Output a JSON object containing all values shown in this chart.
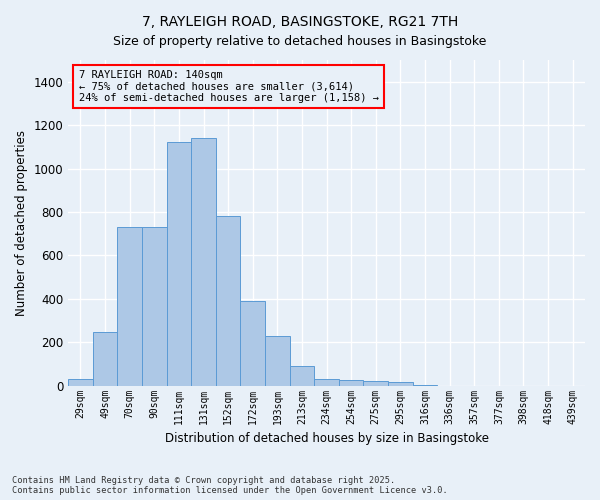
{
  "title1": "7, RAYLEIGH ROAD, BASINGSTOKE, RG21 7TH",
  "title2": "Size of property relative to detached houses in Basingstoke",
  "xlabel": "Distribution of detached houses by size in Basingstoke",
  "ylabel": "Number of detached properties",
  "categories": [
    "29sqm",
    "49sqm",
    "70sqm",
    "90sqm",
    "111sqm",
    "131sqm",
    "152sqm",
    "172sqm",
    "193sqm",
    "213sqm",
    "234sqm",
    "254sqm",
    "275sqm",
    "295sqm",
    "316sqm",
    "336sqm",
    "357sqm",
    "377sqm",
    "398sqm",
    "418sqm",
    "439sqm"
  ],
  "values": [
    30,
    248,
    730,
    730,
    1120,
    1140,
    780,
    390,
    230,
    90,
    30,
    25,
    20,
    15,
    5,
    0,
    0,
    0,
    0,
    0,
    0
  ],
  "bar_color": "#adc8e6",
  "bar_edge_color": "#5b9bd5",
  "background_color": "#e8f0f8",
  "annotation_text": "7 RAYLEIGH ROAD: 140sqm\n← 75% of detached houses are smaller (3,614)\n24% of semi-detached houses are larger (1,158) →",
  "ylim": [
    0,
    1500
  ],
  "yticks": [
    0,
    200,
    400,
    600,
    800,
    1000,
    1200,
    1400
  ],
  "footer": "Contains HM Land Registry data © Crown copyright and database right 2025.\nContains public sector information licensed under the Open Government Licence v3.0.",
  "grid_color": "#ffffff",
  "title_fontsize": 10,
  "subtitle_fontsize": 9
}
